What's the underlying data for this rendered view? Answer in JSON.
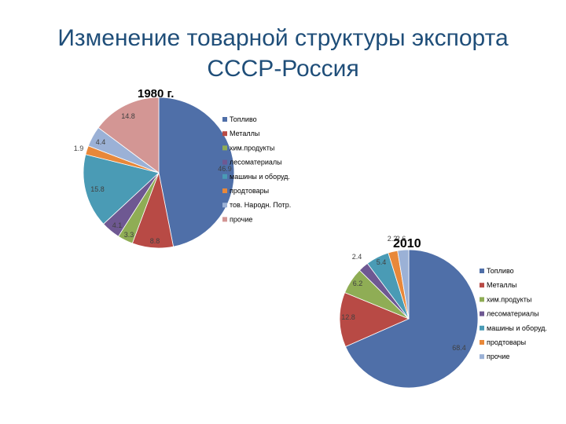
{
  "slide": {
    "title_line1": "Изменение товарной структуры экспорта",
    "title_line2": "СССР-Россия"
  },
  "chart_data": [
    {
      "type": "pie",
      "title": "1980 г.",
      "categories": [
        "Топливо",
        "Металлы",
        "хим.продукты",
        "лесоматериалы",
        "машины и оборуд.",
        "продтовары",
        "тов. Народн. Потр.",
        "прочие"
      ],
      "values": [
        46.9,
        8.8,
        3.3,
        4.1,
        15.8,
        1.9,
        4.4,
        14.8
      ],
      "colors": [
        "#4f6fa8",
        "#b84a45",
        "#8fad55",
        "#6e5892",
        "#4a9bb5",
        "#e8883a",
        "#9bb1d6",
        "#d39694"
      ],
      "legend": "right"
    },
    {
      "type": "pie",
      "title": "2010",
      "categories": [
        "Топливо",
        "Металлы",
        "хим.продукты",
        "лесоматериалы",
        "машины и оборуд.",
        "продтовары",
        "прочие"
      ],
      "values": [
        68.4,
        12.8,
        6.2,
        2.4,
        5.4,
        2.2,
        2.6
      ],
      "colors": [
        "#4f6fa8",
        "#b84a45",
        "#8fad55",
        "#6e5892",
        "#4a9bb5",
        "#e8883a",
        "#9bb1d6"
      ],
      "legend": "right"
    }
  ]
}
